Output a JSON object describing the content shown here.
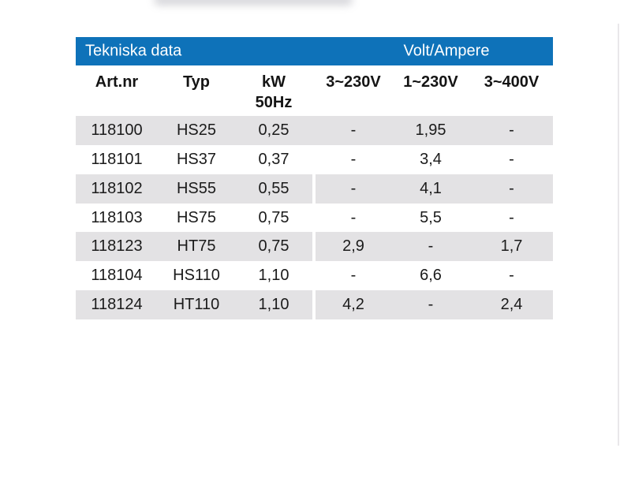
{
  "page": {
    "background": "#ffffff"
  },
  "colors": {
    "header_blue": "#0e72b9",
    "row_shade": "#e3e2e4",
    "text": "#1b1b1b",
    "header_text": "#ffffff"
  },
  "table": {
    "title_bar": {
      "left_label": "Tekniska data",
      "right_label": "Volt/Ampere"
    },
    "columns": [
      {
        "label": "Art.nr"
      },
      {
        "label": "Typ"
      },
      {
        "label": "kW",
        "sublabel": "50Hz"
      },
      {
        "label": "3~230V"
      },
      {
        "label": "1~230V"
      },
      {
        "label": "3~400V"
      }
    ],
    "rows": [
      {
        "art_nr": "118100",
        "typ": "HS25",
        "kw": "0,25",
        "v3_230": "-",
        "v1_230": "1,95",
        "v3_400": "-"
      },
      {
        "art_nr": "118101",
        "typ": "HS37",
        "kw": "0,37",
        "v3_230": "-",
        "v1_230": "3,4",
        "v3_400": "-"
      },
      {
        "art_nr": "118102",
        "typ": "HS55",
        "kw": "0,55",
        "v3_230": "-",
        "v1_230": "4,1",
        "v3_400": "-"
      },
      {
        "art_nr": "118103",
        "typ": "HS75",
        "kw": "0,75",
        "v3_230": "-",
        "v1_230": "5,5",
        "v3_400": "-"
      },
      {
        "art_nr": "118123",
        "typ": "HT75",
        "kw": "0,75",
        "v3_230": "2,9",
        "v1_230": "-",
        "v3_400": "1,7"
      },
      {
        "art_nr": "118104",
        "typ": "HS110",
        "kw": "1,10",
        "v3_230": "-",
        "v1_230": "6,6",
        "v3_400": "-"
      },
      {
        "art_nr": "118124",
        "typ": "HT110",
        "kw": "1,10",
        "v3_230": "4,2",
        "v1_230": "-",
        "v3_400": "2,4"
      }
    ]
  }
}
